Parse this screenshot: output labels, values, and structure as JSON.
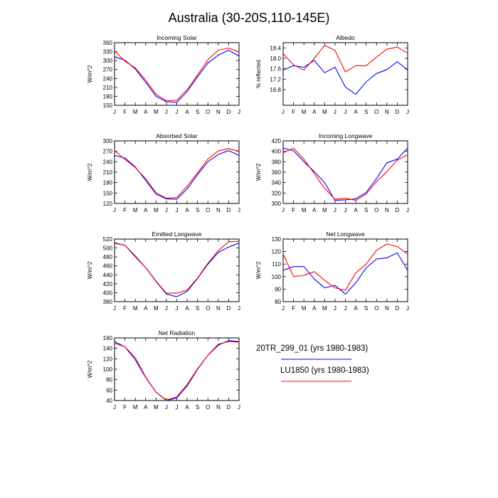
{
  "figure": {
    "title": "Australia (30-20S,110-145E)"
  },
  "legend": [
    {
      "name": "20TR_299_01 (yrs 1980-1983)",
      "color": "#0000ff"
    },
    {
      "name": "LU1850 (yrs 1980-1983)",
      "color": "#ff0000"
    }
  ],
  "chart_data": [
    {
      "type": "line",
      "title": "Incoming Solar",
      "ylabel": "W/m^2",
      "categories": [
        "J",
        "F",
        "M",
        "A",
        "M",
        "J",
        "J",
        "A",
        "S",
        "O",
        "N",
        "D",
        "J"
      ],
      "ylim": [
        150,
        360
      ],
      "yticks": [
        150,
        180,
        210,
        240,
        270,
        300,
        330,
        360
      ],
      "series": [
        {
          "name": "20TR_299_01 (yrs 1980-1983)",
          "color": "#0000ff",
          "values": [
            313,
            301,
            272,
            227,
            180,
            162,
            160,
            196,
            246,
            292,
            318,
            335,
            315
          ]
        },
        {
          "name": "LU1850 (yrs 1980-1983)",
          "color": "#ff0000",
          "values": [
            333,
            298,
            275,
            234,
            187,
            165,
            167,
            203,
            252,
            303,
            335,
            342,
            329
          ]
        }
      ]
    },
    {
      "type": "line",
      "title": "Albedo",
      "ylabel": "% reflected",
      "categories": [
        "J",
        "F",
        "M",
        "A",
        "M",
        "J",
        "J",
        "A",
        "S",
        "O",
        "N",
        "D",
        "J"
      ],
      "ylim": [
        16.2,
        18.6
      ],
      "yticks": [
        16.8,
        17.2,
        17.6,
        18.0,
        18.4
      ],
      "series": [
        {
          "name": "20TR_299_01 (yrs 1980-1983)",
          "color": "#0000ff",
          "values": [
            17.55,
            17.72,
            17.66,
            17.92,
            17.45,
            17.66,
            16.9,
            16.62,
            17.1,
            17.42,
            17.57,
            17.87,
            17.55
          ]
        },
        {
          "name": "LU1850 (yrs 1980-1983)",
          "color": "#ff0000",
          "values": [
            18.18,
            17.75,
            17.55,
            18.0,
            18.5,
            18.3,
            17.48,
            17.72,
            17.72,
            18.05,
            18.35,
            18.43,
            18.2
          ]
        }
      ]
    },
    {
      "type": "line",
      "title": "Absorbed Solar",
      "ylabel": "W/m^2",
      "categories": [
        "J",
        "F",
        "M",
        "A",
        "M",
        "J",
        "J",
        "A",
        "S",
        "O",
        "N",
        "D",
        "J"
      ],
      "ylim": [
        120,
        300
      ],
      "yticks": [
        120,
        150,
        180,
        210,
        240,
        270,
        300
      ],
      "series": [
        {
          "name": "20TR_299_01 (yrs 1980-1983)",
          "color": "#0000ff",
          "values": [
            258,
            251,
            225,
            186,
            147,
            133,
            132,
            162,
            203,
            240,
            261,
            272,
            258
          ]
        },
        {
          "name": "LU1850 (yrs 1980-1983)",
          "color": "#ff0000",
          "values": [
            272,
            247,
            223,
            191,
            151,
            135,
            137,
            170,
            208,
            248,
            271,
            278,
            270
          ]
        }
      ]
    },
    {
      "type": "line",
      "title": "Incoming Longwave",
      "ylabel": "W/m^2",
      "categories": [
        "J",
        "F",
        "M",
        "A",
        "M",
        "J",
        "J",
        "A",
        "S",
        "O",
        "N",
        "D",
        "J"
      ],
      "ylim": [
        300,
        420
      ],
      "yticks": [
        300,
        320,
        340,
        360,
        380,
        400,
        420
      ],
      "series": [
        {
          "name": "20TR_299_01 (yrs 1980-1983)",
          "color": "#0000ff",
          "values": [
            406,
            401,
            380,
            361,
            340,
            306,
            307,
            309,
            321,
            348,
            378,
            385,
            406
          ]
        },
        {
          "name": "LU1850 (yrs 1980-1983)",
          "color": "#ff0000",
          "values": [
            397,
            406,
            385,
            357,
            329,
            308,
            310,
            306,
            318,
            342,
            361,
            383,
            393
          ]
        }
      ]
    },
    {
      "type": "line",
      "title": "Emitted Longwave",
      "ylabel": "W/m^2",
      "categories": [
        "J",
        "F",
        "M",
        "A",
        "M",
        "J",
        "J",
        "A",
        "S",
        "O",
        "N",
        "D",
        "J"
      ],
      "ylim": [
        380,
        520
      ],
      "yticks": [
        380,
        400,
        420,
        440,
        460,
        480,
        500,
        520
      ],
      "series": [
        {
          "name": "20TR_299_01 (yrs 1980-1983)",
          "color": "#0000ff",
          "values": [
            511,
            506,
            482,
            456,
            425,
            397,
            391,
            403,
            432,
            464,
            490,
            502,
            511
          ]
        },
        {
          "name": "LU1850 (yrs 1980-1983)",
          "color": "#ff0000",
          "values": [
            512,
            506,
            480,
            456,
            426,
            399,
            399,
            406,
            433,
            466,
            494,
            514,
            515
          ]
        }
      ]
    },
    {
      "type": "line",
      "title": "Net Longwave",
      "ylabel": "W/m^2",
      "categories": [
        "J",
        "F",
        "M",
        "A",
        "M",
        "J",
        "J",
        "A",
        "S",
        "O",
        "N",
        "D",
        "J"
      ],
      "ylim": [
        80,
        130
      ],
      "yticks": [
        80,
        90,
        100,
        110,
        120,
        130
      ],
      "series": [
        {
          "name": "20TR_299_01 (yrs 1980-1983)",
          "color": "#0000ff",
          "values": [
            105,
            108,
            108,
            98,
            91,
            93,
            86,
            95,
            107,
            114,
            115,
            119,
            105
          ]
        },
        {
          "name": "LU1850 (yrs 1980-1983)",
          "color": "#ff0000",
          "values": [
            118,
            100,
            101,
            104,
            97,
            91,
            89,
            103,
            110,
            121,
            126,
            124,
            118
          ]
        }
      ]
    },
    {
      "type": "line",
      "title": "Net Radiation",
      "ylabel": "W/m^2",
      "categories": [
        "J",
        "F",
        "M",
        "A",
        "M",
        "J",
        "J",
        "A",
        "S",
        "O",
        "N",
        "D",
        "J"
      ],
      "ylim": [
        40,
        160
      ],
      "yticks": [
        40,
        60,
        80,
        100,
        120,
        140,
        160
      ],
      "series": [
        {
          "name": "20TR_299_01 (yrs 1980-1983)",
          "color": "#0000ff",
          "values": [
            153,
            143,
            118,
            84,
            56,
            40,
            45,
            68,
            100,
            127,
            146,
            155,
            153
          ]
        },
        {
          "name": "LU1850 (yrs 1980-1983)",
          "color": "#ff0000",
          "values": [
            150,
            143,
            122,
            85,
            56,
            41,
            47,
            71,
            101,
            127,
            148,
            153,
            152
          ]
        }
      ]
    }
  ]
}
